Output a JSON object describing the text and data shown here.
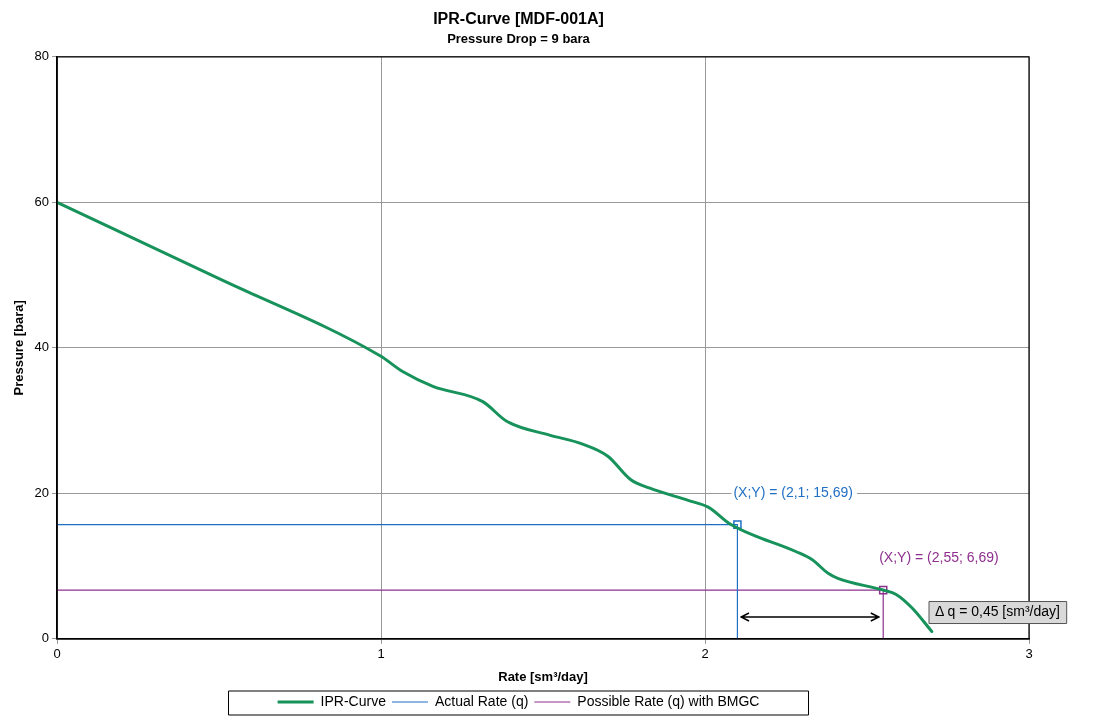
{
  "chart_data": {
    "type": "line",
    "title": "IPR-Curve [MDF-001A]",
    "subtitle": "Pressure Drop = 9 bara",
    "xlabel": "Rate [sm³/day]",
    "ylabel": "Pressure [bara]",
    "xlim": [
      0,
      3
    ],
    "xticks": [
      0,
      1,
      2,
      3
    ],
    "ylim": [
      0,
      80
    ],
    "yticks": [
      0,
      20,
      40,
      60,
      80
    ],
    "grid": true,
    "legend": "bottom",
    "marker": "none",
    "line_style": "solid",
    "series": [
      {
        "name": "IPR-Curve",
        "color": "#16925a",
        "x": [
          0,
          0.5,
          0.997,
          1.068,
          1.16,
          1.314,
          1.388,
          1.52,
          1.62,
          1.7,
          1.77,
          1.83,
          1.95,
          2.01,
          2.08,
          2.28,
          2.33,
          2.38,
          2.41,
          2.55,
          2.59,
          2.64,
          2.7
        ],
        "values": [
          60,
          49.5,
          38.9,
          36.7,
          34.7,
          32.6,
          29.9,
          28,
          26.8,
          25.1,
          21.9,
          20.7,
          19,
          18.1,
          15.7,
          12,
          10.9,
          9,
          8.3,
          6.7,
          6.1,
          4.2,
          1
        ]
      },
      {
        "name": "Actual Rate (q)",
        "color": "#1f6fc4",
        "x": [
          0,
          2.1,
          2.1
        ],
        "values": [
          15.69,
          15.69,
          0
        ]
      },
      {
        "name": "Possible Rate (q) with BMGC",
        "color": "#8e2f8e",
        "x": [
          0,
          2.55,
          2.55
        ],
        "values": [
          6.69,
          6.69,
          0
        ]
      },
      {
        "type": "scatter",
        "marker": "square",
        "color": "#1f6fc4",
        "x": [
          2.1
        ],
        "values": [
          15.69
        ]
      },
      {
        "type": "scatter",
        "marker": "square",
        "color": "#8e2f8e",
        "x": [
          2.55
        ],
        "values": [
          6.69
        ]
      }
    ],
    "annotations": [
      {
        "text": "(X;Y) = (2,1; 15,69)",
        "x": 2.1,
        "y": 15.69
      },
      {
        "text": "(X;Y) = (2,55; 6,69)",
        "x": 2.55,
        "y": 6.69
      },
      "Δ q = 0,45 [sm³/day]"
    ]
  }
}
